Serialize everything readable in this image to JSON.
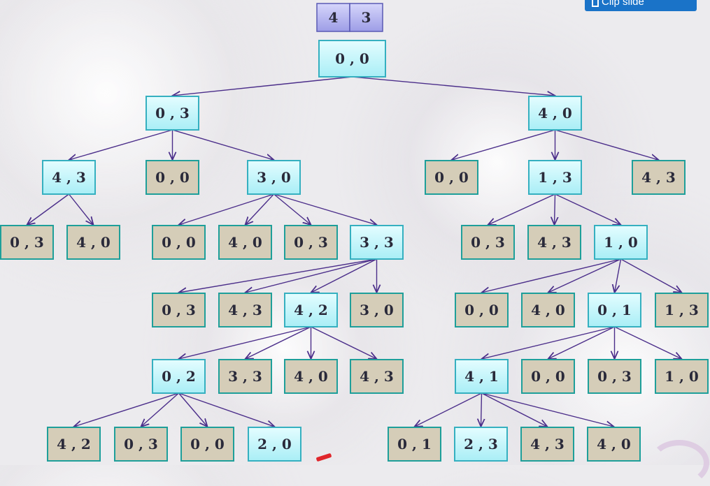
{
  "header": {
    "capacities": [
      "4",
      "3"
    ],
    "clip_button_label": "Clip slide"
  },
  "colors": {
    "expanded_fill": "#c9f7fb",
    "expanded_stroke": "#35b0c0",
    "leaf_fill": "#d5cdb8",
    "leaf_stroke": "#1e9f9a",
    "header_fill": "#b7b7f0",
    "header_stroke": "#5a5ab4",
    "edge": "#4b2e8a"
  },
  "tree": {
    "nodes": [
      {
        "id": "n0",
        "label": "0 , 0",
        "kind": "expanded"
      },
      {
        "id": "n1",
        "label": "0 , 3",
        "kind": "expanded"
      },
      {
        "id": "n2",
        "label": "4 , 0",
        "kind": "expanded"
      },
      {
        "id": "n3",
        "label": "4 , 3",
        "kind": "expanded"
      },
      {
        "id": "n4",
        "label": "0 , 0",
        "kind": "leaf"
      },
      {
        "id": "n5",
        "label": "3 , 0",
        "kind": "expanded"
      },
      {
        "id": "n6",
        "label": "0 , 0",
        "kind": "leaf"
      },
      {
        "id": "n7",
        "label": "1 , 3",
        "kind": "expanded"
      },
      {
        "id": "n8",
        "label": "4 , 3",
        "kind": "leaf"
      },
      {
        "id": "n9",
        "label": "0 , 3",
        "kind": "leaf"
      },
      {
        "id": "n10",
        "label": "4 , 0",
        "kind": "leaf"
      },
      {
        "id": "n11",
        "label": "0 , 0",
        "kind": "leaf"
      },
      {
        "id": "n12",
        "label": "4 , 0",
        "kind": "leaf"
      },
      {
        "id": "n13",
        "label": "0 , 3",
        "kind": "leaf"
      },
      {
        "id": "n14",
        "label": "3 , 3",
        "kind": "expanded"
      },
      {
        "id": "n15",
        "label": "0 , 3",
        "kind": "leaf"
      },
      {
        "id": "n16",
        "label": "4 , 3",
        "kind": "leaf"
      },
      {
        "id": "n17",
        "label": "1 , 0",
        "kind": "expanded"
      },
      {
        "id": "n18",
        "label": "0 , 3",
        "kind": "leaf"
      },
      {
        "id": "n19",
        "label": "4 , 3",
        "kind": "leaf"
      },
      {
        "id": "n20",
        "label": "4 , 2",
        "kind": "expanded"
      },
      {
        "id": "n21",
        "label": "3 , 0",
        "kind": "leaf"
      },
      {
        "id": "n22",
        "label": "0 , 0",
        "kind": "leaf"
      },
      {
        "id": "n23",
        "label": "4 , 0",
        "kind": "leaf"
      },
      {
        "id": "n24",
        "label": "0 , 1",
        "kind": "expanded"
      },
      {
        "id": "n25",
        "label": "1 , 3",
        "kind": "leaf"
      },
      {
        "id": "n26",
        "label": "0 , 2",
        "kind": "expanded"
      },
      {
        "id": "n27",
        "label": "3 , 3",
        "kind": "leaf"
      },
      {
        "id": "n28",
        "label": "4 , 0",
        "kind": "leaf"
      },
      {
        "id": "n29",
        "label": "4 , 3",
        "kind": "leaf"
      },
      {
        "id": "n30",
        "label": "4 , 1",
        "kind": "expanded"
      },
      {
        "id": "n31",
        "label": "0 , 0",
        "kind": "leaf"
      },
      {
        "id": "n32",
        "label": "0 , 3",
        "kind": "leaf"
      },
      {
        "id": "n33",
        "label": "1 , 0",
        "kind": "leaf"
      },
      {
        "id": "n34",
        "label": "4 , 2",
        "kind": "leaf"
      },
      {
        "id": "n35",
        "label": "0 , 3",
        "kind": "leaf"
      },
      {
        "id": "n36",
        "label": "0 , 0",
        "kind": "leaf"
      },
      {
        "id": "n37",
        "label": "2 , 0",
        "kind": "expanded"
      },
      {
        "id": "n38",
        "label": "0 , 1",
        "kind": "leaf"
      },
      {
        "id": "n39",
        "label": "2 , 3",
        "kind": "expanded"
      },
      {
        "id": "n40",
        "label": "4 , 3",
        "kind": "leaf"
      },
      {
        "id": "n41",
        "label": "4 , 0",
        "kind": "leaf"
      }
    ],
    "edges": [
      [
        "n0",
        "n1"
      ],
      [
        "n0",
        "n2"
      ],
      [
        "n1",
        "n3"
      ],
      [
        "n1",
        "n4"
      ],
      [
        "n1",
        "n5"
      ],
      [
        "n2",
        "n6"
      ],
      [
        "n2",
        "n7"
      ],
      [
        "n2",
        "n8"
      ],
      [
        "n3",
        "n9"
      ],
      [
        "n3",
        "n10"
      ],
      [
        "n5",
        "n11"
      ],
      [
        "n5",
        "n12"
      ],
      [
        "n5",
        "n13"
      ],
      [
        "n5",
        "n14"
      ],
      [
        "n7",
        "n15"
      ],
      [
        "n7",
        "n16"
      ],
      [
        "n7",
        "n17"
      ],
      [
        "n14",
        "n18"
      ],
      [
        "n14",
        "n19"
      ],
      [
        "n14",
        "n20"
      ],
      [
        "n14",
        "n21"
      ],
      [
        "n17",
        "n22"
      ],
      [
        "n17",
        "n23"
      ],
      [
        "n17",
        "n24"
      ],
      [
        "n17",
        "n25"
      ],
      [
        "n20",
        "n26"
      ],
      [
        "n20",
        "n27"
      ],
      [
        "n20",
        "n28"
      ],
      [
        "n20",
        "n29"
      ],
      [
        "n24",
        "n30"
      ],
      [
        "n24",
        "n31"
      ],
      [
        "n24",
        "n32"
      ],
      [
        "n24",
        "n33"
      ],
      [
        "n26",
        "n34"
      ],
      [
        "n26",
        "n35"
      ],
      [
        "n26",
        "n36"
      ],
      [
        "n26",
        "n37"
      ],
      [
        "n30",
        "n38"
      ],
      [
        "n30",
        "n39"
      ],
      [
        "n30",
        "n40"
      ],
      [
        "n30",
        "n41"
      ]
    ]
  }
}
